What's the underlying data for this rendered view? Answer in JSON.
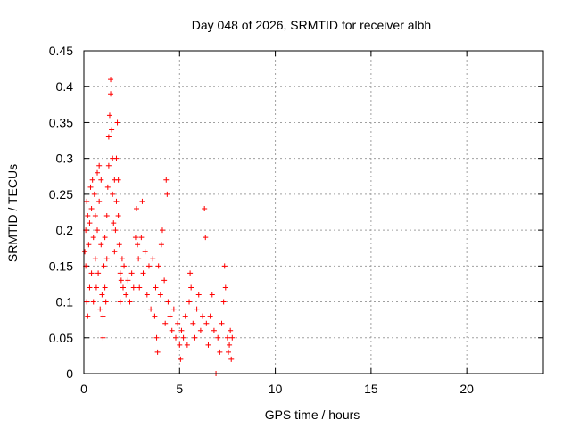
{
  "chart_data": {
    "type": "scatter",
    "title": "Day 048 of 2026, SRMTID for receiver albh",
    "xlabel": "GPS time / hours",
    "ylabel": "SRMTID / TECUs",
    "xlim": [
      0,
      24
    ],
    "ylim": [
      0,
      0.45
    ],
    "xticks": [
      0,
      5,
      10,
      15,
      20
    ],
    "xtick_labels": [
      "0",
      "5",
      "10",
      "15",
      "20"
    ],
    "yticks": [
      0,
      0.05,
      0.1,
      0.15,
      0.2,
      0.25,
      0.3,
      0.35,
      0.4,
      0.45
    ],
    "ytick_labels": [
      "0",
      "0.05",
      "0.1",
      "0.15",
      "0.2",
      "0.25",
      "0.3",
      "0.35",
      "0.4",
      "0.45"
    ],
    "grid": true,
    "marker": "+",
    "series": [
      {
        "name": "SRMTID",
        "color": "#ff0000",
        "points": [
          [
            0.05,
            0.17
          ],
          [
            0.1,
            0.2
          ],
          [
            0.1,
            0.15
          ],
          [
            0.15,
            0.24
          ],
          [
            0.15,
            0.1
          ],
          [
            0.2,
            0.22
          ],
          [
            0.2,
            0.08
          ],
          [
            0.25,
            0.18
          ],
          [
            0.3,
            0.21
          ],
          [
            0.3,
            0.12
          ],
          [
            0.35,
            0.26
          ],
          [
            0.4,
            0.23
          ],
          [
            0.4,
            0.14
          ],
          [
            0.45,
            0.27
          ],
          [
            0.5,
            0.19
          ],
          [
            0.5,
            0.1
          ],
          [
            0.55,
            0.25
          ],
          [
            0.6,
            0.16
          ],
          [
            0.6,
            0.22
          ],
          [
            0.65,
            0.12
          ],
          [
            0.7,
            0.2
          ],
          [
            0.7,
            0.28
          ],
          [
            0.75,
            0.14
          ],
          [
            0.8,
            0.29
          ],
          [
            0.8,
            0.24
          ],
          [
            0.85,
            0.09
          ],
          [
            0.9,
            0.27
          ],
          [
            0.9,
            0.18
          ],
          [
            0.95,
            0.11
          ],
          [
            1.0,
            0.08
          ],
          [
            1.0,
            0.05
          ],
          [
            1.05,
            0.15
          ],
          [
            1.1,
            0.12
          ],
          [
            1.1,
            0.19
          ],
          [
            1.15,
            0.1
          ],
          [
            1.2,
            0.22
          ],
          [
            1.2,
            0.16
          ],
          [
            1.25,
            0.26
          ],
          [
            1.3,
            0.33
          ],
          [
            1.3,
            0.29
          ],
          [
            1.35,
            0.36
          ],
          [
            1.4,
            0.39
          ],
          [
            1.4,
            0.41
          ],
          [
            1.45,
            0.34
          ],
          [
            1.5,
            0.3
          ],
          [
            1.5,
            0.25
          ],
          [
            1.55,
            0.21
          ],
          [
            1.6,
            0.27
          ],
          [
            1.6,
            0.17
          ],
          [
            1.65,
            0.2
          ],
          [
            1.7,
            0.24
          ],
          [
            1.7,
            0.3
          ],
          [
            1.75,
            0.35
          ],
          [
            1.8,
            0.27
          ],
          [
            1.8,
            0.22
          ],
          [
            1.85,
            0.18
          ],
          [
            1.9,
            0.14
          ],
          [
            1.9,
            0.1
          ],
          [
            1.95,
            0.13
          ],
          [
            2.0,
            0.16
          ],
          [
            2.05,
            0.12
          ],
          [
            2.1,
            0.15
          ],
          [
            2.2,
            0.11
          ],
          [
            2.3,
            0.13
          ],
          [
            2.4,
            0.1
          ],
          [
            2.5,
            0.14
          ],
          [
            2.6,
            0.12
          ],
          [
            2.7,
            0.19
          ],
          [
            2.75,
            0.23
          ],
          [
            2.8,
            0.18
          ],
          [
            2.85,
            0.16
          ],
          [
            2.9,
            0.12
          ],
          [
            3.0,
            0.19
          ],
          [
            3.05,
            0.24
          ],
          [
            3.1,
            0.14
          ],
          [
            3.2,
            0.17
          ],
          [
            3.3,
            0.11
          ],
          [
            3.4,
            0.15
          ],
          [
            3.5,
            0.09
          ],
          [
            3.6,
            0.16
          ],
          [
            3.7,
            0.08
          ],
          [
            3.75,
            0.12
          ],
          [
            3.8,
            0.05
          ],
          [
            3.85,
            0.03
          ],
          [
            3.9,
            0.15
          ],
          [
            4.0,
            0.11
          ],
          [
            4.05,
            0.18
          ],
          [
            4.1,
            0.2
          ],
          [
            4.2,
            0.13
          ],
          [
            4.25,
            0.07
          ],
          [
            4.3,
            0.27
          ],
          [
            4.35,
            0.25
          ],
          [
            4.4,
            0.1
          ],
          [
            4.5,
            0.08
          ],
          [
            4.6,
            0.06
          ],
          [
            4.7,
            0.09
          ],
          [
            4.8,
            0.05
          ],
          [
            4.9,
            0.07
          ],
          [
            5.0,
            0.04
          ],
          [
            5.05,
            0.02
          ],
          [
            5.1,
            0.06
          ],
          [
            5.2,
            0.05
          ],
          [
            5.3,
            0.08
          ],
          [
            5.4,
            0.04
          ],
          [
            5.5,
            0.1
          ],
          [
            5.55,
            0.14
          ],
          [
            5.6,
            0.12
          ],
          [
            5.7,
            0.07
          ],
          [
            5.8,
            0.05
          ],
          [
            5.9,
            0.09
          ],
          [
            6.0,
            0.11
          ],
          [
            6.1,
            0.06
          ],
          [
            6.2,
            0.08
          ],
          [
            6.3,
            0.23
          ],
          [
            6.35,
            0.19
          ],
          [
            6.4,
            0.07
          ],
          [
            6.5,
            0.04
          ],
          [
            6.6,
            0.08
          ],
          [
            6.7,
            0.11
          ],
          [
            6.8,
            0.06
          ],
          [
            6.9,
            0.0
          ],
          [
            7.0,
            0.05
          ],
          [
            7.1,
            0.03
          ],
          [
            7.2,
            0.07
          ],
          [
            7.3,
            0.1
          ],
          [
            7.35,
            0.15
          ],
          [
            7.4,
            0.12
          ],
          [
            7.5,
            0.05
          ],
          [
            7.55,
            0.03
          ],
          [
            7.6,
            0.04
          ],
          [
            7.65,
            0.06
          ],
          [
            7.7,
            0.02
          ],
          [
            7.75,
            0.05
          ]
        ]
      }
    ]
  }
}
